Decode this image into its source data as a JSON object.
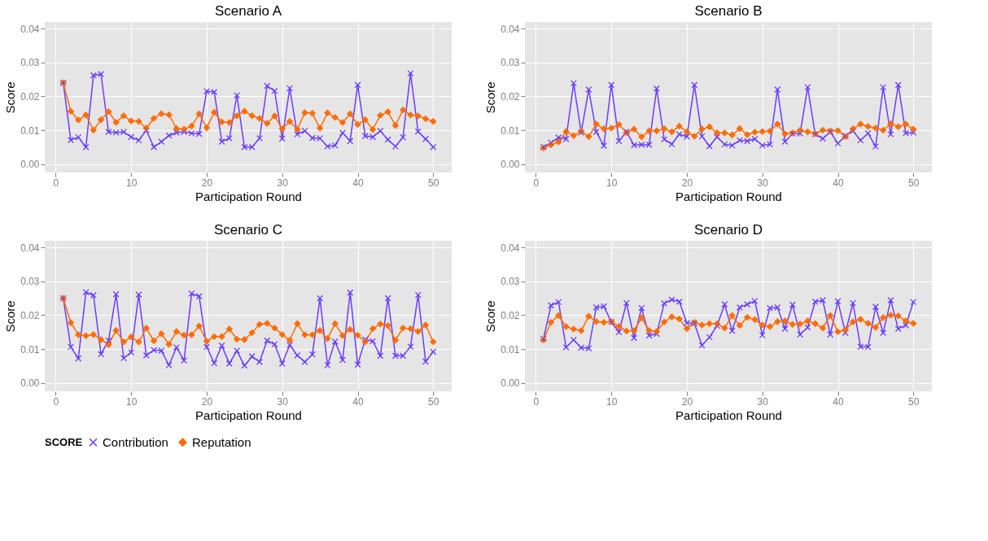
{
  "chart_data": [
    {
      "type": "line",
      "title": "Scenario A",
      "xlabel": "Participation Round",
      "ylabel": "Score",
      "legend_title": "SCORE",
      "legend": "bottom",
      "grid": true,
      "x": [
        1,
        2,
        3,
        4,
        5,
        6,
        7,
        8,
        9,
        10,
        11,
        12,
        13,
        14,
        15,
        16,
        17,
        18,
        19,
        20,
        21,
        22,
        23,
        24,
        25,
        26,
        27,
        28,
        29,
        30,
        31,
        32,
        33,
        34,
        35,
        36,
        37,
        38,
        39,
        40,
        41,
        42,
        43,
        44,
        45,
        46,
        47,
        48,
        49,
        50
      ],
      "xlim": [
        -1.45,
        52.45
      ],
      "xticks": [
        0,
        10,
        20,
        30,
        40,
        50
      ],
      "ylim": [
        -0.0025,
        0.042
      ],
      "yticks": [
        {
          "value": 0,
          "label": "0.00"
        },
        {
          "value": 0.01,
          "label": "0.01"
        },
        {
          "value": 0.02,
          "label": "0.02"
        },
        {
          "value": 0.03,
          "label": "0.03"
        },
        {
          "value": 0.04,
          "label": "0.04"
        }
      ],
      "series": [
        {
          "name": "Contribution",
          "color": "#6a3dff",
          "marker": "cross",
          "values": [
            0.024,
            0.0071,
            0.0079,
            0.005,
            0.0262,
            0.0266,
            0.0095,
            0.0093,
            0.0095,
            0.008,
            0.007,
            0.01,
            0.005,
            0.0066,
            0.0084,
            0.0093,
            0.0095,
            0.0091,
            0.0089,
            0.0215,
            0.0213,
            0.0066,
            0.0076,
            0.0203,
            0.005,
            0.005,
            0.0076,
            0.0231,
            0.0216,
            0.0075,
            0.0224,
            0.0088,
            0.0098,
            0.0077,
            0.0076,
            0.0052,
            0.0055,
            0.0092,
            0.0068,
            0.0234,
            0.0083,
            0.008,
            0.0098,
            0.0072,
            0.0052,
            0.0079,
            0.0268,
            0.0096,
            0.0074,
            0.005
          ]
        },
        {
          "name": "Reputation",
          "color": "#ff6a00",
          "marker": "diamond",
          "values": [
            0.024,
            0.0156,
            0.013,
            0.0145,
            0.01,
            0.0131,
            0.0155,
            0.0123,
            0.0143,
            0.0127,
            0.0126,
            0.0106,
            0.0135,
            0.0149,
            0.0146,
            0.0105,
            0.0103,
            0.0112,
            0.0148,
            0.0107,
            0.0153,
            0.0124,
            0.0123,
            0.0143,
            0.0156,
            0.0143,
            0.0135,
            0.012,
            0.0142,
            0.0104,
            0.0126,
            0.0102,
            0.0152,
            0.015,
            0.0106,
            0.0151,
            0.0138,
            0.0123,
            0.0148,
            0.0117,
            0.0131,
            0.0102,
            0.0144,
            0.0154,
            0.0114,
            0.016,
            0.0145,
            0.0142,
            0.0134,
            0.0126
          ]
        }
      ]
    },
    {
      "type": "line",
      "title": "Scenario B",
      "xlabel": "Participation Round",
      "ylabel": "Score",
      "grid": true,
      "x": [
        1,
        2,
        3,
        4,
        5,
        6,
        7,
        8,
        9,
        10,
        11,
        12,
        13,
        14,
        15,
        16,
        17,
        18,
        19,
        20,
        21,
        22,
        23,
        24,
        25,
        26,
        27,
        28,
        29,
        30,
        31,
        32,
        33,
        34,
        35,
        36,
        37,
        38,
        39,
        40,
        41,
        42,
        43,
        44,
        45,
        46,
        47,
        48,
        49,
        50
      ],
      "xlim": [
        -1.45,
        52.45
      ],
      "xticks": [
        0,
        10,
        20,
        30,
        40,
        50
      ],
      "ylim": [
        -0.0025,
        0.042
      ],
      "yticks": [
        {
          "value": 0,
          "label": "0.00"
        },
        {
          "value": 0.01,
          "label": "0.01"
        },
        {
          "value": 0.02,
          "label": "0.02"
        },
        {
          "value": 0.03,
          "label": "0.03"
        },
        {
          "value": 0.04,
          "label": "0.04"
        }
      ],
      "series": [
        {
          "name": "Contribution",
          "color": "#6a3dff",
          "marker": "cross",
          "values": [
            0.005,
            0.0063,
            0.0078,
            0.0074,
            0.0239,
            0.0093,
            0.022,
            0.0095,
            0.0054,
            0.0234,
            0.0068,
            0.0095,
            0.0056,
            0.0057,
            0.0057,
            0.0223,
            0.0073,
            0.0059,
            0.0088,
            0.0081,
            0.0234,
            0.0082,
            0.0053,
            0.008,
            0.0058,
            0.0055,
            0.007,
            0.0068,
            0.0074,
            0.0055,
            0.0058,
            0.022,
            0.0066,
            0.009,
            0.009,
            0.0227,
            0.0088,
            0.0075,
            0.0095,
            0.0061,
            0.0083,
            0.0098,
            0.007,
            0.0091,
            0.0052,
            0.0227,
            0.0088,
            0.0234,
            0.0091,
            0.0093
          ]
        },
        {
          "name": "Reputation",
          "color": "#ff6a00",
          "marker": "diamond",
          "values": [
            0.0048,
            0.0057,
            0.0065,
            0.0096,
            0.0084,
            0.0097,
            0.0081,
            0.0118,
            0.0104,
            0.0106,
            0.0117,
            0.0093,
            0.0103,
            0.008,
            0.0098,
            0.0098,
            0.0104,
            0.0095,
            0.0112,
            0.0095,
            0.0082,
            0.0103,
            0.011,
            0.0092,
            0.0092,
            0.0086,
            0.0105,
            0.0087,
            0.0094,
            0.0096,
            0.0097,
            0.0118,
            0.0089,
            0.0092,
            0.01,
            0.0095,
            0.009,
            0.01,
            0.0098,
            0.0099,
            0.0081,
            0.0104,
            0.0118,
            0.0111,
            0.0106,
            0.01,
            0.0119,
            0.011,
            0.0118,
            0.0103
          ]
        }
      ]
    },
    {
      "type": "line",
      "title": "Scenario C",
      "xlabel": "Participation Round",
      "ylabel": "Score",
      "grid": true,
      "x": [
        1,
        2,
        3,
        4,
        5,
        6,
        7,
        8,
        9,
        10,
        11,
        12,
        13,
        14,
        15,
        16,
        17,
        18,
        19,
        20,
        21,
        22,
        23,
        24,
        25,
        26,
        27,
        28,
        29,
        30,
        31,
        32,
        33,
        34,
        35,
        36,
        37,
        38,
        39,
        40,
        41,
        42,
        43,
        44,
        45,
        46,
        47,
        48,
        49,
        50
      ],
      "xlim": [
        -1.45,
        52.45
      ],
      "xticks": [
        0,
        10,
        20,
        30,
        40,
        50
      ],
      "ylim": [
        -0.0025,
        0.042
      ],
      "yticks": [
        {
          "value": 0,
          "label": "0.00"
        },
        {
          "value": 0.01,
          "label": "0.01"
        },
        {
          "value": 0.02,
          "label": "0.02"
        },
        {
          "value": 0.03,
          "label": "0.03"
        },
        {
          "value": 0.04,
          "label": "0.04"
        }
      ],
      "series": [
        {
          "name": "Contribution",
          "color": "#6a3dff",
          "marker": "cross",
          "values": [
            0.025,
            0.0106,
            0.0072,
            0.0268,
            0.0259,
            0.0085,
            0.0125,
            0.0262,
            0.0073,
            0.009,
            0.0261,
            0.0081,
            0.0097,
            0.0095,
            0.0052,
            0.0105,
            0.0066,
            0.0264,
            0.0256,
            0.0106,
            0.0058,
            0.011,
            0.0057,
            0.0095,
            0.0051,
            0.0078,
            0.0062,
            0.0125,
            0.0114,
            0.0057,
            0.0112,
            0.0081,
            0.0062,
            0.0084,
            0.025,
            0.0052,
            0.0122,
            0.0068,
            0.0267,
            0.0054,
            0.0128,
            0.0123,
            0.008,
            0.025,
            0.008,
            0.008,
            0.0107,
            0.026,
            0.0063,
            0.0092
          ]
        },
        {
          "name": "Reputation",
          "color": "#ff6a00",
          "marker": "diamond",
          "values": [
            0.025,
            0.0178,
            0.0142,
            0.0139,
            0.0143,
            0.0128,
            0.0113,
            0.0155,
            0.0121,
            0.0136,
            0.0121,
            0.0162,
            0.0124,
            0.0145,
            0.0114,
            0.0152,
            0.0141,
            0.0142,
            0.0168,
            0.0123,
            0.0137,
            0.0137,
            0.0159,
            0.0129,
            0.0128,
            0.0148,
            0.0173,
            0.0176,
            0.0162,
            0.0143,
            0.0126,
            0.0175,
            0.0142,
            0.0142,
            0.0155,
            0.0131,
            0.0175,
            0.014,
            0.0158,
            0.0141,
            0.0121,
            0.016,
            0.0174,
            0.0169,
            0.0126,
            0.0162,
            0.016,
            0.0152,
            0.0171,
            0.0121
          ]
        }
      ]
    },
    {
      "type": "line",
      "title": "Scenario D",
      "xlabel": "Participation Round",
      "ylabel": "Score",
      "grid": true,
      "x": [
        1,
        2,
        3,
        4,
        5,
        6,
        7,
        8,
        9,
        10,
        11,
        12,
        13,
        14,
        15,
        16,
        17,
        18,
        19,
        20,
        21,
        22,
        23,
        24,
        25,
        26,
        27,
        28,
        29,
        30,
        31,
        32,
        33,
        34,
        35,
        36,
        37,
        38,
        39,
        40,
        41,
        42,
        43,
        44,
        45,
        46,
        47,
        48,
        49,
        50
      ],
      "xlim": [
        -1.45,
        52.45
      ],
      "xticks": [
        0,
        10,
        20,
        30,
        40,
        50
      ],
      "ylim": [
        -0.0025,
        0.042
      ],
      "yticks": [
        {
          "value": 0,
          "label": "0.00"
        },
        {
          "value": 0.01,
          "label": "0.01"
        },
        {
          "value": 0.02,
          "label": "0.02"
        },
        {
          "value": 0.03,
          "label": "0.03"
        },
        {
          "value": 0.04,
          "label": "0.04"
        }
      ],
      "series": [
        {
          "name": "Contribution",
          "color": "#6a3dff",
          "marker": "cross",
          "values": [
            0.013,
            0.0229,
            0.0239,
            0.0105,
            0.0127,
            0.0104,
            0.0102,
            0.0223,
            0.0226,
            0.018,
            0.015,
            0.0236,
            0.0133,
            0.0221,
            0.014,
            0.0145,
            0.0235,
            0.0246,
            0.024,
            0.0177,
            0.0176,
            0.0111,
            0.0135,
            0.0169,
            0.0232,
            0.0154,
            0.0223,
            0.0232,
            0.0242,
            0.0141,
            0.0221,
            0.0223,
            0.016,
            0.0231,
            0.0143,
            0.0164,
            0.024,
            0.0244,
            0.0143,
            0.0241,
            0.0148,
            0.0236,
            0.0107,
            0.0106,
            0.0225,
            0.0148,
            0.0244,
            0.016,
            0.017,
            0.0239
          ]
        },
        {
          "name": "Reputation",
          "color": "#ff6a00",
          "marker": "diamond",
          "values": [
            0.0127,
            0.0179,
            0.0199,
            0.0166,
            0.0159,
            0.0154,
            0.0197,
            0.0181,
            0.0179,
            0.0181,
            0.0167,
            0.0153,
            0.0155,
            0.0192,
            0.0155,
            0.0152,
            0.018,
            0.0195,
            0.0189,
            0.016,
            0.0179,
            0.0171,
            0.0175,
            0.0175,
            0.0162,
            0.0199,
            0.017,
            0.0194,
            0.0187,
            0.0171,
            0.0166,
            0.0181,
            0.0183,
            0.0173,
            0.0174,
            0.0183,
            0.0175,
            0.0162,
            0.0199,
            0.0151,
            0.0157,
            0.018,
            0.0188,
            0.0176,
            0.0164,
            0.0193,
            0.02,
            0.0198,
            0.0183,
            0.0176
          ]
        }
      ]
    }
  ]
}
